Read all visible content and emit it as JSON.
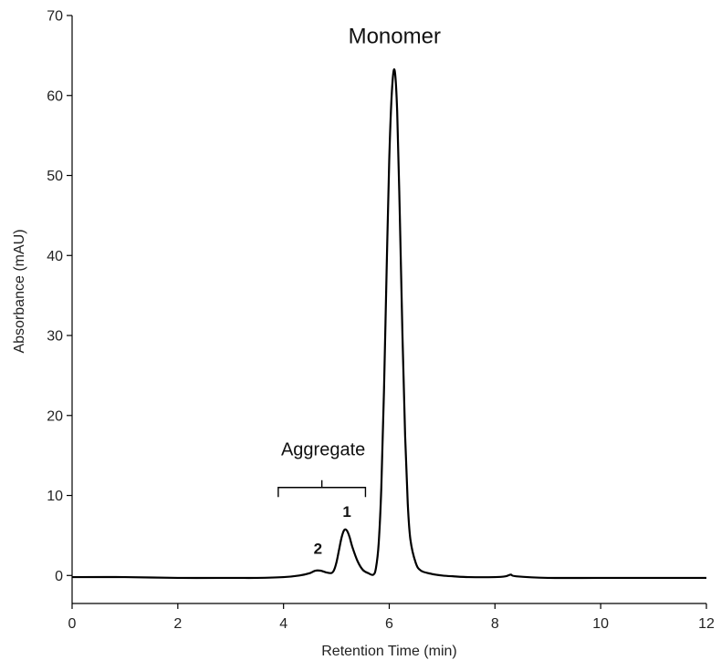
{
  "chart_data": {
    "type": "line",
    "xlabel": "Retention Time (min)",
    "ylabel": "Absorbance (mAU)",
    "xlim": [
      0,
      12
    ],
    "ylim": [
      -3.5,
      70
    ],
    "xticks": [
      0,
      2,
      4,
      6,
      8,
      10,
      12
    ],
    "yticks": [
      0,
      10,
      20,
      30,
      40,
      50,
      60,
      70
    ],
    "grid": false,
    "line_color": "#000000",
    "series": [
      {
        "x": [
          0,
          1,
          2,
          3,
          3.5,
          4.0,
          4.3,
          4.5,
          4.6,
          4.7,
          4.8,
          4.9,
          4.95,
          5.0,
          5.05,
          5.1,
          5.15,
          5.2,
          5.25,
          5.3,
          5.4,
          5.5,
          5.6,
          5.7,
          5.75,
          5.8,
          5.85,
          5.9,
          5.95,
          6.0,
          6.05,
          6.1,
          6.15,
          6.2,
          6.25,
          6.3,
          6.35,
          6.4,
          6.5,
          6.6,
          6.8,
          7.0,
          7.2,
          7.5,
          8.0,
          8.2,
          8.3,
          8.4,
          9.0,
          10.0,
          11.0,
          12.0
        ],
        "y": [
          -0.2,
          -0.2,
          -0.3,
          -0.3,
          -0.3,
          -0.2,
          0.0,
          0.3,
          0.6,
          0.6,
          0.4,
          0.3,
          0.6,
          1.6,
          3.2,
          4.8,
          5.7,
          5.6,
          4.8,
          3.6,
          1.8,
          0.7,
          0.3,
          0.1,
          1.0,
          4.0,
          11.0,
          23.0,
          38.0,
          52.0,
          60.5,
          63.2,
          58.0,
          45.0,
          30.0,
          17.5,
          9.0,
          4.5,
          1.6,
          0.6,
          0.2,
          0.0,
          -0.1,
          -0.2,
          -0.2,
          -0.1,
          0.1,
          -0.1,
          -0.3,
          -0.3,
          -0.3,
          -0.3
        ]
      }
    ],
    "annotations": [
      {
        "text": "Monomer",
        "x": 6.1,
        "y": 66.5
      },
      {
        "text": "Aggregate",
        "x": 4.75,
        "y": 15.0
      },
      {
        "text": "1",
        "x": 5.2,
        "y": 7.3
      },
      {
        "text": "2",
        "x": 4.65,
        "y": 2.7
      }
    ],
    "bracket": {
      "x_start": 3.9,
      "x_end": 5.55,
      "y": 11.0,
      "depth": 1.2
    }
  }
}
